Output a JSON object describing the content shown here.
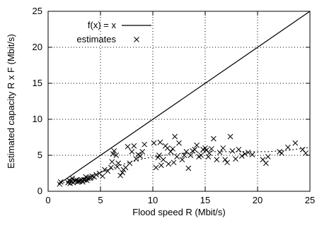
{
  "chart_data": {
    "type": "scatter",
    "xlabel": "Flood speed R (Mbit/s)",
    "ylabel": "Estimated capacity R x F (Mbit/s)",
    "xlim": [
      0,
      25
    ],
    "ylim": [
      0,
      25
    ],
    "xticks": [
      0,
      5,
      10,
      15,
      20,
      25
    ],
    "yticks": [
      0,
      5,
      10,
      15,
      20,
      25
    ],
    "grid": "dotted",
    "legend": {
      "placement": "top-left",
      "entries": [
        {
          "label": "f(x) = x",
          "marker": "line"
        },
        {
          "label": "estimates",
          "marker": "x"
        }
      ]
    },
    "series": [
      {
        "name": "f(x) = x",
        "kind": "line",
        "x": [
          1,
          25
        ],
        "y": [
          1,
          25
        ]
      },
      {
        "name": "estimates",
        "kind": "points",
        "marker": "x",
        "x": [
          1.1,
          1.2,
          1.9,
          2.0,
          2.1,
          2.2,
          2.3,
          2.4,
          2.5,
          2.6,
          2.7,
          2.8,
          2.9,
          3.0,
          3.1,
          3.2,
          3.3,
          3.4,
          3.5,
          3.6,
          3.7,
          3.8,
          4.0,
          4.1,
          4.2,
          4.4,
          4.6,
          4.9,
          5.2,
          5.4,
          5.7,
          6.0,
          6.1,
          6.2,
          6.3,
          6.5,
          6.6,
          6.7,
          6.9,
          7.1,
          7.2,
          7.4,
          7.6,
          7.8,
          8.0,
          8.2,
          8.4,
          8.6,
          8.8,
          9.0,
          9.2,
          10.1,
          10.3,
          10.5,
          10.6,
          10.7,
          10.8,
          11.0,
          11.2,
          11.4,
          11.5,
          11.7,
          11.9,
          12.0,
          12.1,
          12.3,
          12.5,
          12.8,
          13.0,
          13.2,
          13.4,
          13.6,
          13.8,
          14.0,
          14.2,
          14.4,
          14.6,
          14.8,
          15.0,
          15.1,
          15.3,
          15.4,
          15.6,
          15.8,
          16.1,
          16.4,
          16.7,
          16.9,
          17.1,
          17.4,
          17.6,
          17.9,
          18.2,
          18.5,
          18.8,
          19.1,
          19.5,
          20.5,
          20.8,
          21.0,
          22.1,
          22.3,
          22.9,
          23.6,
          24.3,
          24.6
        ],
        "y": [
          1.0,
          1.3,
          1.2,
          1.5,
          1.1,
          1.4,
          1.8,
          1.2,
          1.4,
          1.5,
          1.6,
          1.3,
          1.4,
          1.4,
          1.5,
          1.6,
          1.3,
          1.6,
          1.6,
          2.0,
          1.5,
          1.8,
          1.8,
          1.9,
          2.1,
          2.0,
          2.3,
          2.5,
          2.1,
          3.0,
          2.8,
          3.3,
          4.1,
          5.2,
          5.6,
          5.0,
          3.4,
          3.9,
          2.2,
          2.6,
          3.0,
          3.3,
          6.2,
          3.9,
          5.5,
          6.3,
          4.5,
          5.1,
          4.9,
          5.5,
          6.5,
          6.7,
          3.3,
          4.7,
          5.0,
          6.8,
          3.6,
          4.4,
          6.3,
          6.0,
          3.8,
          5.5,
          5.9,
          4.0,
          7.6,
          4.8,
          6.7,
          4.4,
          5.0,
          5.5,
          3.2,
          5.0,
          5.6,
          5.8,
          6.4,
          4.8,
          5.0,
          5.8,
          6.0,
          5.7,
          4.8,
          5.3,
          5.9,
          7.3,
          4.4,
          5.4,
          6.0,
          4.4,
          4.0,
          7.6,
          5.6,
          4.5,
          5.8,
          4.9,
          5.2,
          5.4,
          5.1,
          4.4,
          3.9,
          4.8,
          5.5,
          5.3,
          6.1,
          6.7,
          5.8,
          5.3
        ]
      },
      {
        "name": "",
        "kind": "trend",
        "x": [
          1.1,
          3,
          5,
          7,
          9,
          11,
          13,
          15,
          17,
          19,
          21,
          23,
          25
        ],
        "y": [
          1.1,
          1.6,
          2.6,
          3.7,
          4.5,
          5.0,
          5.3,
          5.5,
          5.5,
          5.5,
          5.5,
          5.7,
          6.1
        ]
      }
    ]
  }
}
